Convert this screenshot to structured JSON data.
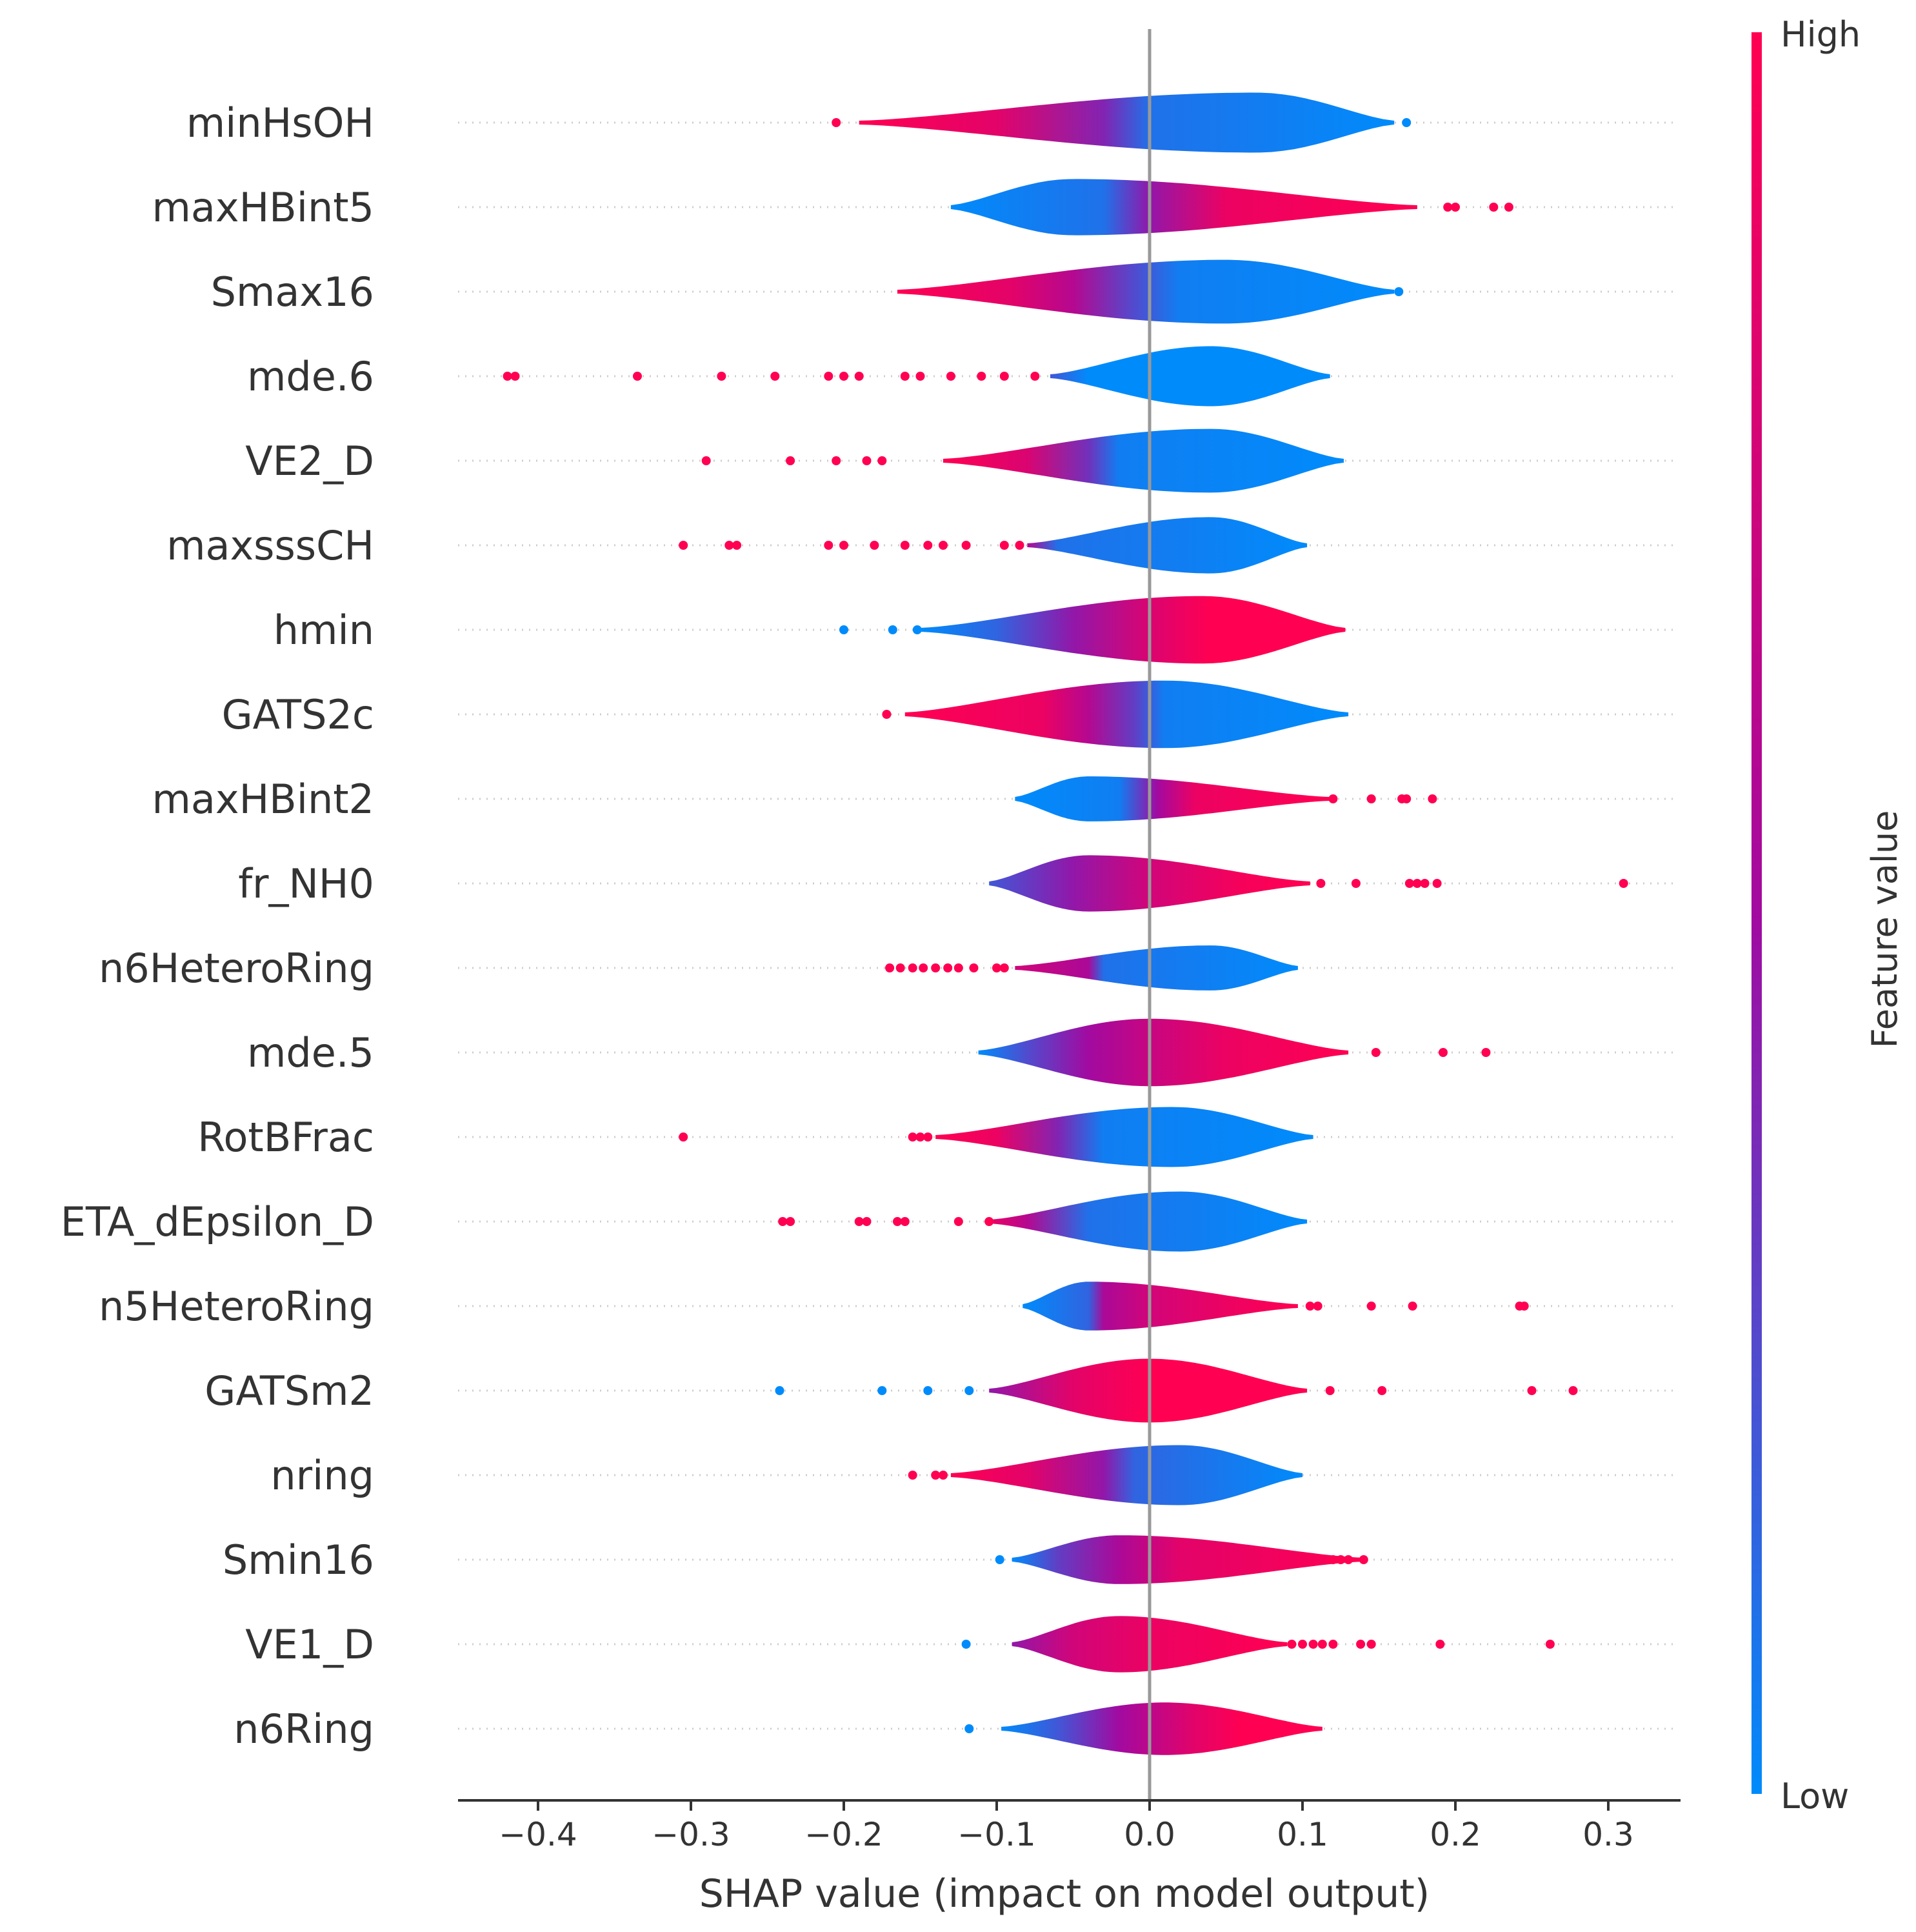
{
  "chart_data": {
    "type": "violin",
    "xlabel": "SHAP value (impact on model output)",
    "xlim": [
      -0.46,
      0.35
    ],
    "xticks": [
      -0.4,
      -0.3,
      -0.2,
      -0.1,
      0.0,
      0.1,
      0.2,
      0.3
    ],
    "xtick_labels": [
      "−0.4",
      "−0.3",
      "−0.2",
      "−0.1",
      "0.0",
      "0.1",
      "0.2",
      "0.3"
    ],
    "colorbar": {
      "label": "Feature value",
      "high_label": "High",
      "low_label": "Low",
      "high_color": "#ff0052",
      "low_color": "#008bfb"
    },
    "features": [
      {
        "name": "minHsOH",
        "body": [
          -0.19,
          0.16
        ],
        "center": 0.07,
        "width": 0.75,
        "color_stops": [
          [
            -0.19,
            1.0
          ],
          [
            -0.1,
            0.85
          ],
          [
            -0.03,
            0.4
          ],
          [
            0.0,
            0.1
          ],
          [
            0.16,
            0.0
          ]
        ],
        "outliers": [
          [
            -0.205,
            1
          ],
          [
            0.168,
            0
          ]
        ]
      },
      {
        "name": "maxHBint5",
        "body": [
          -0.13,
          0.175
        ],
        "center": -0.05,
        "width": 0.7,
        "color_stops": [
          [
            -0.13,
            0.0
          ],
          [
            -0.03,
            0.1
          ],
          [
            0.0,
            0.45
          ],
          [
            0.05,
            0.9
          ],
          [
            0.175,
            1.0
          ]
        ],
        "outliers": [
          [
            0.195,
            1
          ],
          [
            0.2,
            1
          ],
          [
            0.225,
            1
          ],
          [
            0.235,
            1
          ]
        ]
      },
      {
        "name": "Smax16",
        "body": [
          -0.165,
          0.16
        ],
        "center": 0.05,
        "width": 0.8,
        "color_stops": [
          [
            -0.165,
            1.0
          ],
          [
            -0.09,
            0.85
          ],
          [
            -0.05,
            0.6
          ],
          [
            -0.01,
            0.25
          ],
          [
            0.02,
            0.05
          ],
          [
            0.16,
            0.0
          ]
        ],
        "outliers": [
          [
            0.163,
            0
          ]
        ]
      },
      {
        "name": "mde.6",
        "body": [
          -0.065,
          0.118
        ],
        "center": 0.04,
        "width": 0.75,
        "color_stops": [
          [
            -0.065,
            0.2
          ],
          [
            -0.04,
            0.0
          ],
          [
            0.118,
            0.0
          ]
        ],
        "outliers": [
          [
            -0.42,
            1
          ],
          [
            -0.415,
            1
          ],
          [
            -0.335,
            1
          ],
          [
            -0.28,
            1
          ],
          [
            -0.245,
            1
          ],
          [
            -0.21,
            1
          ],
          [
            -0.2,
            1
          ],
          [
            -0.19,
            1
          ],
          [
            -0.16,
            1
          ],
          [
            -0.15,
            1
          ],
          [
            -0.13,
            1
          ],
          [
            -0.11,
            1
          ],
          [
            -0.095,
            1
          ],
          [
            -0.075,
            1
          ]
        ]
      },
      {
        "name": "VE2_D",
        "body": [
          -0.135,
          0.127
        ],
        "center": 0.04,
        "width": 0.8,
        "color_stops": [
          [
            -0.135,
            1.0
          ],
          [
            -0.08,
            0.8
          ],
          [
            -0.04,
            0.35
          ],
          [
            -0.02,
            0.05
          ],
          [
            0.127,
            0.0
          ]
        ],
        "outliers": [
          [
            -0.29,
            1
          ],
          [
            -0.235,
            1
          ],
          [
            -0.205,
            1
          ],
          [
            -0.185,
            1
          ],
          [
            -0.175,
            1
          ]
        ]
      },
      {
        "name": "maxsssCH",
        "body": [
          -0.08,
          0.103
        ],
        "center": 0.04,
        "width": 0.7,
        "color_stops": [
          [
            -0.08,
            0.6
          ],
          [
            -0.06,
            0.1
          ],
          [
            0.103,
            0.0
          ]
        ],
        "outliers": [
          [
            -0.305,
            1
          ],
          [
            -0.275,
            1
          ],
          [
            -0.27,
            1
          ],
          [
            -0.21,
            1
          ],
          [
            -0.2,
            1
          ],
          [
            -0.18,
            1
          ],
          [
            -0.16,
            1
          ],
          [
            -0.145,
            1
          ],
          [
            -0.135,
            1
          ],
          [
            -0.12,
            1
          ],
          [
            -0.095,
            1
          ],
          [
            -0.085,
            1
          ]
        ]
      },
      {
        "name": "hmin",
        "body": [
          -0.15,
          0.128
        ],
        "center": 0.035,
        "width": 0.85,
        "color_stops": [
          [
            -0.15,
            0.0
          ],
          [
            -0.1,
            0.15
          ],
          [
            -0.05,
            0.45
          ],
          [
            0.0,
            0.8
          ],
          [
            0.04,
            1.0
          ],
          [
            0.128,
            1.0
          ]
        ],
        "outliers": [
          [
            -0.2,
            0
          ],
          [
            -0.168,
            0
          ],
          [
            -0.152,
            0
          ]
        ]
      },
      {
        "name": "GATS2c",
        "body": [
          -0.16,
          0.13
        ],
        "center": 0.01,
        "width": 0.85,
        "color_stops": [
          [
            -0.16,
            1.0
          ],
          [
            -0.07,
            0.9
          ],
          [
            -0.04,
            0.6
          ],
          [
            -0.01,
            0.3
          ],
          [
            0.01,
            0.05
          ],
          [
            0.13,
            0.0
          ]
        ],
        "outliers": [
          [
            -0.172,
            1
          ]
        ]
      },
      {
        "name": "maxHBint2",
        "body": [
          -0.088,
          0.118
        ],
        "center": -0.04,
        "width": 0.55,
        "color_stops": [
          [
            -0.088,
            0.0
          ],
          [
            -0.02,
            0.05
          ],
          [
            0.005,
            0.5
          ],
          [
            0.03,
            0.9
          ],
          [
            0.118,
            1.0
          ]
        ],
        "outliers": [
          [
            0.12,
            1
          ],
          [
            0.145,
            1
          ],
          [
            0.165,
            1
          ],
          [
            0.168,
            1
          ],
          [
            0.185,
            1
          ]
        ]
      },
      {
        "name": "fr_NH0",
        "body": [
          -0.105,
          0.105
        ],
        "center": -0.04,
        "width": 0.7,
        "color_stops": [
          [
            -0.105,
            0.2
          ],
          [
            -0.05,
            0.45
          ],
          [
            0.0,
            0.75
          ],
          [
            0.06,
            0.95
          ],
          [
            0.105,
            1.0
          ]
        ],
        "outliers": [
          [
            0.112,
            1
          ],
          [
            0.135,
            1
          ],
          [
            0.17,
            1
          ],
          [
            0.175,
            1
          ],
          [
            0.18,
            1
          ],
          [
            0.188,
            1
          ],
          [
            0.31,
            1
          ]
        ]
      },
      {
        "name": "n6HeteroRing",
        "body": [
          -0.088,
          0.097
        ],
        "center": 0.04,
        "width": 0.55,
        "color_stops": [
          [
            -0.088,
            0.75
          ],
          [
            -0.04,
            0.55
          ],
          [
            -0.03,
            0.1
          ],
          [
            0.097,
            0.0
          ]
        ],
        "outliers": [
          [
            -0.17,
            1
          ],
          [
            -0.163,
            1
          ],
          [
            -0.155,
            1
          ],
          [
            -0.148,
            1
          ],
          [
            -0.14,
            1
          ],
          [
            -0.132,
            1
          ],
          [
            -0.125,
            1
          ],
          [
            -0.115,
            1
          ],
          [
            -0.1,
            1
          ],
          [
            -0.095,
            1
          ]
        ]
      },
      {
        "name": "mde.5",
        "body": [
          -0.112,
          0.13
        ],
        "center": 0.0,
        "width": 0.85,
        "color_stops": [
          [
            -0.112,
            0.0
          ],
          [
            -0.08,
            0.25
          ],
          [
            -0.04,
            0.5
          ],
          [
            0.0,
            0.7
          ],
          [
            0.05,
            0.9
          ],
          [
            0.13,
            1.0
          ]
        ],
        "outliers": [
          [
            0.148,
            1
          ],
          [
            0.192,
            1
          ],
          [
            0.22,
            1
          ]
        ]
      },
      {
        "name": "RotBFrac",
        "body": [
          -0.14,
          0.107
        ],
        "center": 0.015,
        "width": 0.75,
        "color_stops": [
          [
            -0.14,
            1.0
          ],
          [
            -0.1,
            0.9
          ],
          [
            -0.06,
            0.4
          ],
          [
            -0.03,
            0.05
          ],
          [
            0.107,
            0.0
          ]
        ],
        "outliers": [
          [
            -0.305,
            1
          ],
          [
            -0.155,
            1
          ],
          [
            -0.15,
            1
          ],
          [
            -0.145,
            1
          ]
        ]
      },
      {
        "name": "ETA_dEpsilon_D",
        "body": [
          -0.105,
          0.103
        ],
        "center": 0.02,
        "width": 0.75,
        "color_stops": [
          [
            -0.105,
            0.9
          ],
          [
            -0.08,
            0.6
          ],
          [
            -0.04,
            0.1
          ],
          [
            0.103,
            0.0
          ]
        ],
        "outliers": [
          [
            -0.24,
            1
          ],
          [
            -0.235,
            1
          ],
          [
            -0.19,
            1
          ],
          [
            -0.185,
            1
          ],
          [
            -0.165,
            1
          ],
          [
            -0.16,
            1
          ],
          [
            -0.125,
            1
          ],
          [
            -0.105,
            1
          ]
        ]
      },
      {
        "name": "n5HeteroRing",
        "body": [
          -0.083,
          0.097
        ],
        "center": -0.04,
        "width": 0.6,
        "color_stops": [
          [
            -0.083,
            0.0
          ],
          [
            -0.04,
            0.15
          ],
          [
            -0.03,
            0.55
          ],
          [
            0.0,
            0.75
          ],
          [
            0.05,
            0.9
          ],
          [
            0.097,
            1.0
          ]
        ],
        "outliers": [
          [
            0.105,
            1
          ],
          [
            0.11,
            1
          ],
          [
            0.145,
            1
          ],
          [
            0.172,
            1
          ],
          [
            0.242,
            1
          ],
          [
            0.245,
            1
          ]
        ]
      },
      {
        "name": "GATSm2",
        "body": [
          -0.105,
          0.103
        ],
        "center": 0.0,
        "width": 0.8,
        "color_stops": [
          [
            -0.105,
            0.45
          ],
          [
            -0.05,
            0.85
          ],
          [
            0.0,
            1.0
          ],
          [
            0.103,
            1.0
          ]
        ],
        "outliers": [
          [
            -0.242,
            0
          ],
          [
            -0.175,
            0
          ],
          [
            -0.145,
            0
          ],
          [
            -0.118,
            0
          ],
          [
            0.118,
            1
          ],
          [
            0.152,
            1
          ],
          [
            0.25,
            1
          ],
          [
            0.277,
            1
          ]
        ]
      },
      {
        "name": "nring",
        "body": [
          -0.13,
          0.1
        ],
        "center": 0.02,
        "width": 0.75,
        "color_stops": [
          [
            -0.13,
            1.0
          ],
          [
            -0.08,
            0.85
          ],
          [
            -0.03,
            0.45
          ],
          [
            -0.01,
            0.15
          ],
          [
            0.1,
            0.0
          ]
        ],
        "outliers": [
          [
            -0.155,
            1
          ],
          [
            -0.14,
            1
          ],
          [
            -0.135,
            1
          ]
        ]
      },
      {
        "name": "Smin16",
        "body": [
          -0.09,
          0.14
        ],
        "center": -0.02,
        "width": 0.6,
        "color_stops": [
          [
            -0.09,
            0.0
          ],
          [
            -0.06,
            0.3
          ],
          [
            -0.02,
            0.55
          ],
          [
            0.02,
            0.85
          ],
          [
            0.14,
            1.0
          ]
        ],
        "outliers": [
          [
            -0.098,
            0
          ],
          [
            0.12,
            1
          ],
          [
            0.125,
            1
          ],
          [
            0.13,
            1
          ],
          [
            0.14,
            1
          ]
        ]
      },
      {
        "name": "VE1_D",
        "body": [
          -0.09,
          0.09
        ],
        "center": -0.02,
        "width": 0.7,
        "color_stops": [
          [
            -0.09,
            0.45
          ],
          [
            -0.05,
            0.75
          ],
          [
            0.0,
            0.9
          ],
          [
            0.09,
            1.0
          ]
        ],
        "outliers": [
          [
            -0.12,
            0
          ],
          [
            0.093,
            1
          ],
          [
            0.1,
            1
          ],
          [
            0.107,
            1
          ],
          [
            0.113,
            1
          ],
          [
            0.12,
            1
          ],
          [
            0.138,
            1
          ],
          [
            0.145,
            1
          ],
          [
            0.19,
            1
          ],
          [
            0.262,
            1
          ]
        ]
      },
      {
        "name": "n6Ring",
        "body": [
          -0.097,
          0.113
        ],
        "center": 0.01,
        "width": 0.65,
        "color_stops": [
          [
            -0.097,
            0.0
          ],
          [
            -0.06,
            0.2
          ],
          [
            -0.02,
            0.5
          ],
          [
            0.03,
            0.85
          ],
          [
            0.06,
            1.0
          ],
          [
            0.113,
            1.0
          ]
        ],
        "outliers": [
          [
            -0.118,
            0
          ]
        ]
      }
    ]
  }
}
